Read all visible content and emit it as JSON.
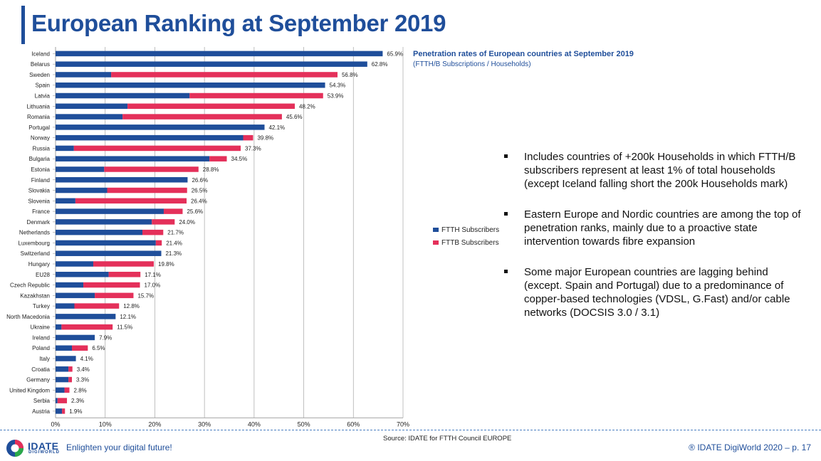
{
  "slide": {
    "title": "European Ranking at September 2019",
    "bullets": [
      "Includes countries of +200k Households in which FTTH/B subscribers represent at least 1% of total households (except Iceland falling short the 200k Households mark)",
      "Eastern Europe and Nordic countries are among the top of penetration ranks, mainly due to a proactive state intervention towards fibre expansion",
      "Some major European countries are lagging behind (except. Spain and Portugal) due to a predominance of copper-based technologies (VDSL, G.Fast) and/or cable networks (DOCSIS 3.0 / 3.1)"
    ],
    "source": "Source: IDATE for FTTH Council EUROPE"
  },
  "footer": {
    "brand": "IDATE",
    "brand_sub": "DIGIWORLD",
    "tagline": "Enlighten your digital future!",
    "copyright": "® IDATE DigiWorld 2020",
    "page": "– p. 17"
  },
  "colors": {
    "ftth": "#1f4e9a",
    "fttb": "#e4305a",
    "title": "#1f4e9a"
  },
  "chart_data": {
    "type": "bar",
    "orientation": "horizontal",
    "stacked": true,
    "title": "Penetration rates of European countries at September 2019",
    "subtitle": "(FTTH/B Subscriptions / Households)",
    "xlim": [
      0,
      70
    ],
    "x_ticks": [
      "0%",
      "10%",
      "20%",
      "30%",
      "40%",
      "50%",
      "60%",
      "70%"
    ],
    "grid": "vertical",
    "legend_position": "right",
    "categories": [
      "Iceland",
      "Belarus",
      "Sweden",
      "Spain",
      "Latvia",
      "Lithuania",
      "Romania",
      "Portugal",
      "Norway",
      "Russia",
      "Bulgaria",
      "Estonia",
      "Finland",
      "Slovakia",
      "Slovenia",
      "France",
      "Denmark",
      "Netherlands",
      "Luxembourg",
      "Switzerland",
      "Hungary",
      "EU28",
      "Czech Republic",
      "Kazakhstan",
      "Turkey",
      "North Macedonia",
      "Ukraine",
      "Ireland",
      "Poland",
      "Italy",
      "Croatia",
      "Germany",
      "United Kingdom",
      "Serbia",
      "Austria"
    ],
    "series": [
      {
        "name": "FTTH Subscribers",
        "values": [
          65.9,
          62.8,
          11.2,
          54.3,
          27.0,
          14.5,
          13.5,
          42.1,
          37.8,
          3.7,
          31.0,
          9.8,
          26.6,
          10.4,
          4.0,
          21.8,
          19.4,
          17.5,
          20.2,
          21.3,
          7.6,
          10.7,
          5.6,
          7.9,
          3.8,
          12.1,
          1.2,
          7.9,
          3.3,
          4.1,
          2.6,
          2.6,
          1.8,
          0.4,
          1.3
        ]
      },
      {
        "name": "FTTB Subscribers",
        "values": [
          0.0,
          0.0,
          45.6,
          0.0,
          26.9,
          33.7,
          32.1,
          0.0,
          2.0,
          33.6,
          3.5,
          19.0,
          0.0,
          16.1,
          22.4,
          3.8,
          4.6,
          4.2,
          1.2,
          0.0,
          12.2,
          6.4,
          11.4,
          7.8,
          9.0,
          0.0,
          10.3,
          0.0,
          3.2,
          0.0,
          0.8,
          0.7,
          1.0,
          1.9,
          0.6
        ]
      }
    ],
    "totals": [
      "65.9%",
      "62.8%",
      "56.8%",
      "54.3%",
      "53.9%",
      "48.2%",
      "45.6%",
      "42.1%",
      "39.8%",
      "37.3%",
      "34.5%",
      "28.8%",
      "26.6%",
      "26.5%",
      "26.4%",
      "25.6%",
      "24.0%",
      "21.7%",
      "21.4%",
      "21.3%",
      "19.8%",
      "17.1%",
      "17.0%",
      "15.7%",
      "12.8%",
      "12.1%",
      "11.5%",
      "7.9%",
      "6.5%",
      "4.1%",
      "3.4%",
      "3.3%",
      "2.8%",
      "2.3%",
      "1.9%"
    ]
  }
}
